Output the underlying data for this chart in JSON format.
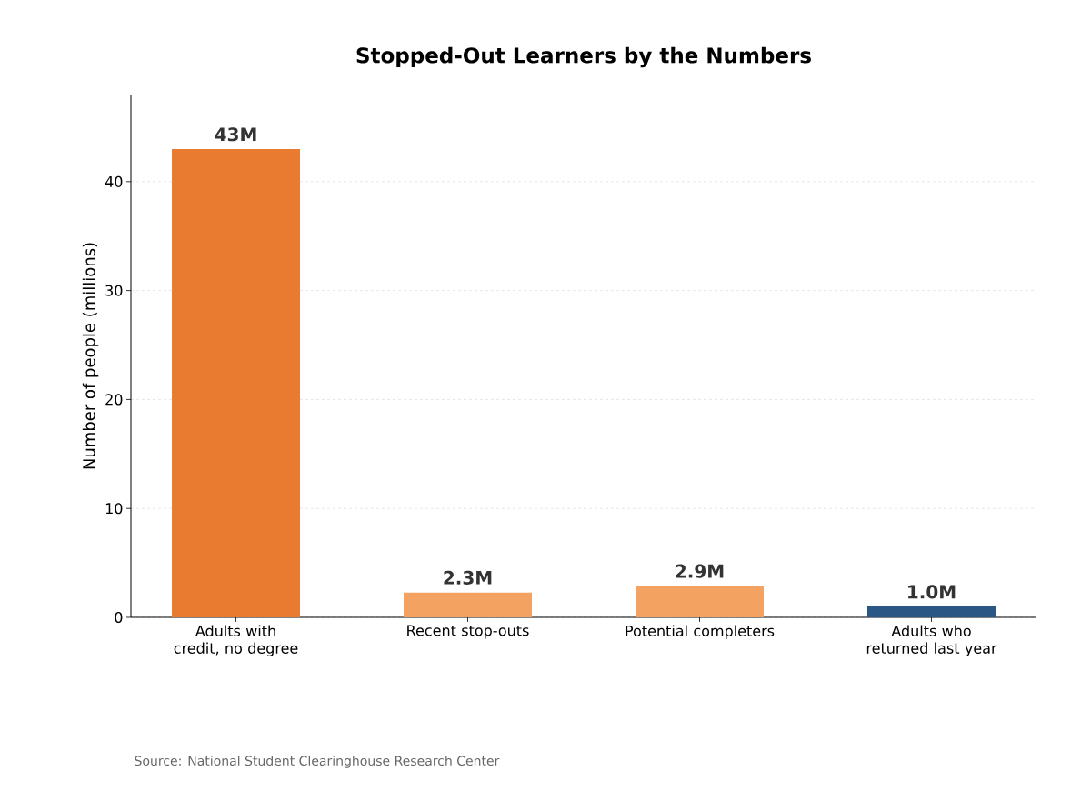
{
  "chart_data": {
    "type": "bar",
    "title": "Stopped-Out Learners by the Numbers",
    "ylabel": "Number of people (millions)",
    "categories": [
      "Adults with credit, no degree",
      "Recent stop-outs",
      "Potential completers",
      "Adults who returned last year"
    ],
    "values": [
      43,
      2.3,
      2.9,
      1.0
    ],
    "colors": [
      "#e87b2f",
      "#f4a261",
      "#f4a261",
      "#2a5783"
    ],
    "value_labels": [
      "43M",
      "2.3M",
      "2.9M",
      "1.0M"
    ],
    "ylim": [
      0,
      48
    ],
    "yticks": [
      0,
      10,
      20,
      30,
      40
    ],
    "grid": "y",
    "annotations": [
      "Source: National Student Clearinghouse Research Center"
    ]
  }
}
